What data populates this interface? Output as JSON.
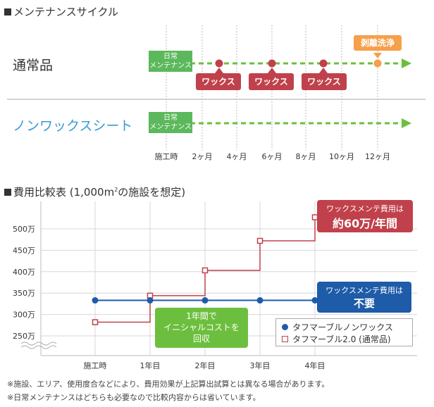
{
  "maintenance": {
    "title": "メンテナンスサイクル",
    "rows": [
      {
        "label": "通常品",
        "start_label": "日常\nメンテナンス"
      },
      {
        "label": "ノンワックスシート",
        "start_label": "日常\nメンテナンス"
      }
    ],
    "events": [
      "ワックス",
      "ワックス",
      "ワックス"
    ],
    "strip_label": "剥離洗浄",
    "timeline_labels": [
      "施工時",
      "2ヶ月",
      "4ヶ月",
      "6ヶ月",
      "8ヶ月",
      "10ヶ月",
      "12ヶ月"
    ]
  },
  "cost": {
    "title": "費用比較表 (1,000m",
    "title_sup": "2",
    "title_suffix": "の施設を想定)",
    "callout_red_line1": "ワックスメンテ費用は",
    "callout_red_line2": "約60万/年間",
    "callout_blue_line1": "ワックスメンテ費用は",
    "callout_blue_line2": "不要",
    "callout_green_line1": "1年間で",
    "callout_green_line2": "イニシャルコストを",
    "callout_green_line3": "回収",
    "legend": [
      {
        "label": "タフマーブルノンワックス",
        "color": "#1e5ba8",
        "marker": "circle"
      },
      {
        "label": "タフマーブル2.0 (通常品)",
        "color": "#c0414b",
        "marker": "square"
      }
    ]
  },
  "chart_data": {
    "type": "line",
    "categories": [
      "施工時",
      "1年目",
      "2年目",
      "3年目",
      "4年目"
    ],
    "y_tick_labels": [
      "250万",
      "300万",
      "350万",
      "400万",
      "450万",
      "500万"
    ],
    "ylim": [
      240,
      520
    ],
    "grid": true,
    "series": [
      {
        "name": "タフマーブルノンワックス",
        "values": [
          333,
          333,
          333,
          333,
          333
        ],
        "color": "#1e5ba8",
        "marker": "circle"
      },
      {
        "name": "タフマーブル2.0 (通常品)",
        "values": [
          282,
          344,
          403,
          472,
          527
        ],
        "color": "#c0414b",
        "marker": "square",
        "step": true
      }
    ]
  },
  "notes": [
    "※施設、エリア、使用度合などにより、費用効果が上記算出試算とは異なる場合があります。",
    "※日常メンテナンスはどちらも必要なので比較内容からは省いています。"
  ]
}
